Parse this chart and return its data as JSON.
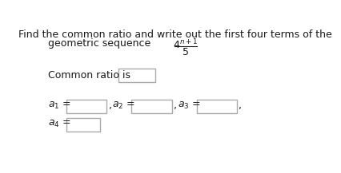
{
  "bg_color": "#ffffff",
  "text_color": "#1a1a1a",
  "box_edge_color": "#aaaaaa",
  "title_line1": "Find the common ratio and write out the first four terms of the",
  "title_line2_left": "geometric sequence",
  "font_size": 9,
  "font_size_math": 9
}
